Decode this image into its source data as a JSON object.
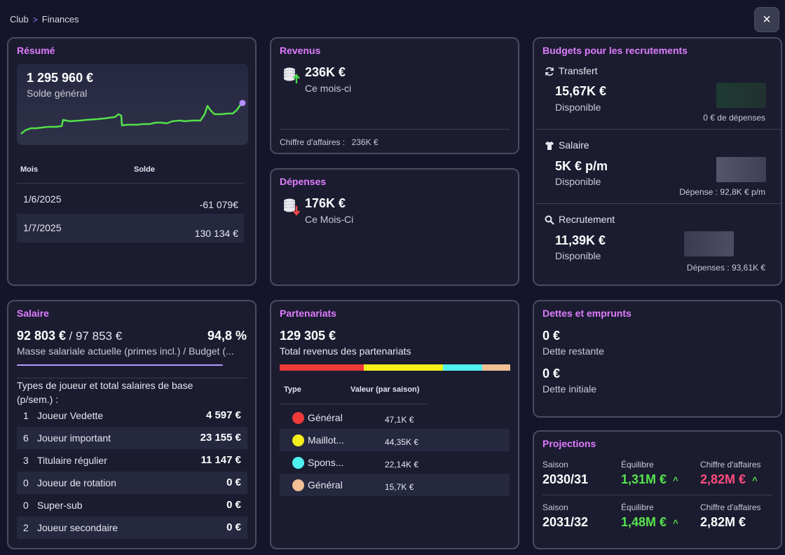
{
  "breadcrumb": {
    "root": "Club",
    "separator": ">",
    "current": "Finances"
  },
  "close_icon": "×",
  "resume": {
    "title": "Résumé",
    "balance": "1 295 960 €",
    "balance_label": "Solde général",
    "table": {
      "col_month": "Mois",
      "col_balance": "Solde",
      "rows": [
        {
          "month": "1/6/2025",
          "balance": "-61 079€"
        },
        {
          "month": "1/7/2025",
          "balance": "130 134 €"
        }
      ]
    },
    "line_color": "#52e04a",
    "point_color": "#b38cff"
  },
  "revenus": {
    "title": "Revenus",
    "amount": "236K €",
    "period": "Ce mois-ci",
    "turnover_label": "Chiffre d'affaires :",
    "turnover_value": "236K €"
  },
  "depenses": {
    "title": "Dépenses",
    "amount": "176K €",
    "period": "Ce Mois-Ci"
  },
  "budgets": {
    "title": "Budgets pour les recrutements",
    "items": [
      {
        "icon": "refresh-icon",
        "name": "Transfert",
        "amount": "15,67K €",
        "status": "Disponible",
        "spent": "0 € de dépenses"
      },
      {
        "icon": "shirt-icon",
        "name": "Salaire",
        "amount": "5K € p/m",
        "status": "Disponible",
        "spent": "Dépense : 92,8K € p/m"
      },
      {
        "icon": "search-icon",
        "name": "Recrutement",
        "amount": "11,39K €",
        "status": "Disponible",
        "spent": "Dépenses : 93,61K €"
      }
    ]
  },
  "salaire": {
    "title": "Salaire",
    "current": "92 803 €",
    "budget": "/ 97 853 €",
    "percent": "94,8 %",
    "caption": "Masse salariale actuelle (primes incl.) / Budget (...",
    "progress": 0.948,
    "types_label": "Types de joueur et total salaires de base (p/sem.) :",
    "rows": [
      {
        "count": "1",
        "label": "Joueur Vedette",
        "value": "4 597 €"
      },
      {
        "count": "6",
        "label": "Joueur important",
        "value": "23 155 €"
      },
      {
        "count": "3",
        "label": "Titulaire régulier",
        "value": "11 147 €"
      },
      {
        "count": "0",
        "label": "Joueur de rotation",
        "value": "0 €"
      },
      {
        "count": "0",
        "label": "Super-sub",
        "value": "0 €"
      },
      {
        "count": "2",
        "label": "Joueur secondaire",
        "value": "0 €"
      }
    ]
  },
  "partenariats": {
    "title": "Partenariats",
    "total": "129 305 €",
    "total_label": "Total revenus des partenariats",
    "col_type": "Type",
    "col_value": "Valeur (par saison)",
    "rows": [
      {
        "label": "Général",
        "value": "47,1K €",
        "amount": 47.1,
        "color": "#ef3a3a"
      },
      {
        "label": "Maillot...",
        "value": "44,35K €",
        "amount": 44.35,
        "color": "#f4ef1a"
      },
      {
        "label": "Spons...",
        "value": "22,14K €",
        "amount": 22.14,
        "color": "#4ff0f0"
      },
      {
        "label": "Général",
        "value": "15,7K €",
        "amount": 15.7,
        "color": "#f0c094"
      }
    ]
  },
  "dettes": {
    "title": "Dettes et emprunts",
    "remaining": "0 €",
    "remaining_label": "Dette restante",
    "initial": "0 €",
    "initial_label": "Dette initiale"
  },
  "projections": {
    "title": "Projections",
    "season_label": "Saison",
    "balance_label": "Équilibre",
    "turnover_label": "Chiffre d'affaires",
    "rows": [
      {
        "season": "2030/31",
        "balance": "1,31M €",
        "balance_arrow": "^",
        "turnover": "2,82M €",
        "turnover_arrow": "^"
      },
      {
        "season": "2031/32",
        "balance": "1,48M €",
        "balance_arrow": "^",
        "turnover": "2,82M €",
        "turnover_arrow": ""
      }
    ]
  }
}
